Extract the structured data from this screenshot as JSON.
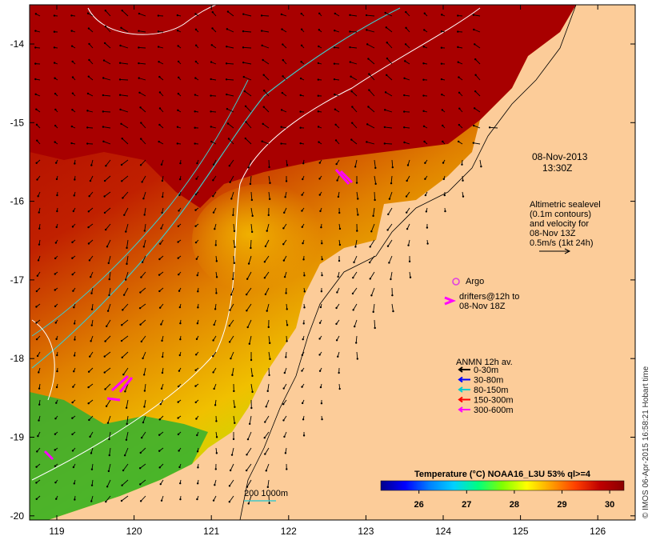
{
  "map": {
    "date_label": "08-Nov-2013",
    "time_label": "13:30Z",
    "altimetry_lines": [
      "Altimetric sealevel",
      "(0.1m contours)",
      "and velocity for",
      "08-Nov 13Z",
      "0.5m/s (1kt 24h)"
    ],
    "argo_label": "Argo",
    "drifters_lines": [
      "drifters@12h to",
      "08-Nov 18Z"
    ],
    "anmn_title": "ANMN 12h av.",
    "anmn_legend": [
      {
        "label": "0-30m",
        "color": "#000000"
      },
      {
        "label": "30-80m",
        "color": "#0000ff"
      },
      {
        "label": "80-150m",
        "color": "#00cccc"
      },
      {
        "label": "150-300m",
        "color": "#ff0000"
      },
      {
        "label": "300-600m",
        "color": "#ff00ff"
      }
    ],
    "isobath_label": "200  1000m",
    "colorbar_title": "Temperature (°C) NOAA16_L3U 53% ql>=4",
    "colorbar_ticks": [
      "26",
      "27",
      "28",
      "29",
      "30"
    ],
    "colorbar_range": [
      25.2,
      30.3
    ],
    "colorbar_colors": [
      "#00008b",
      "#0000ff",
      "#0080ff",
      "#00d0ff",
      "#00ff80",
      "#80ff00",
      "#ffff00",
      "#ffa000",
      "#ff4000",
      "#c00000",
      "#8b0000"
    ],
    "x_ticks": [
      "119",
      "120",
      "121",
      "122",
      "123",
      "124",
      "125",
      "126"
    ],
    "y_ticks": [
      "-14",
      "-15",
      "-16",
      "-17",
      "-18",
      "-19",
      "-20"
    ],
    "credit": "© IMOS 06-Apr-2015 16:58:21 Hobart time",
    "colors": {
      "land": "#fccc99",
      "sea_warm": "#a80000",
      "argo": "#e040e0",
      "drifter": "#ff00ff",
      "isobath": "#40c8c8"
    }
  }
}
